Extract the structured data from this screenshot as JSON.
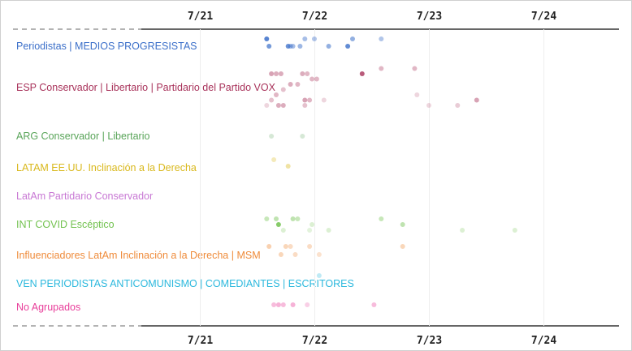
{
  "chart_data": {
    "type": "scatter",
    "title": "",
    "xlabel": "",
    "ylabel": "",
    "x_ticks": [
      "7/21",
      "7/22",
      "7/23",
      "7/24"
    ],
    "xlim": [
      "7/20 12:00",
      "7/25 12:00"
    ],
    "grid": true,
    "groups": [
      {
        "name": "Periodistas | MEDIOS PROGRESISTAS",
        "color": "#3b6fc9",
        "points": [
          {
            "x": "7/21 14:00",
            "o": 0.85,
            "band": 0
          },
          {
            "x": "7/21 14:30",
            "o": 0.7,
            "band": 1
          },
          {
            "x": "7/21 18:30",
            "o": 0.75,
            "band": 1
          },
          {
            "x": "7/21 19:00",
            "o": 0.5,
            "band": 1
          },
          {
            "x": "7/21 19:30",
            "o": 0.45,
            "band": 1
          },
          {
            "x": "7/21 21:00",
            "o": 0.5,
            "band": 1
          },
          {
            "x": "7/21 22:00",
            "o": 0.45,
            "band": 0
          },
          {
            "x": "7/22 00:00",
            "o": 0.4,
            "band": 0
          },
          {
            "x": "7/22 03:00",
            "o": 0.55,
            "band": 1
          },
          {
            "x": "7/22 07:00",
            "o": 0.8,
            "band": 1
          },
          {
            "x": "7/22 08:00",
            "o": 0.55,
            "band": 0
          },
          {
            "x": "7/22 14:00",
            "o": 0.4,
            "band": 0
          }
        ]
      },
      {
        "name": "ESP Conservador | Libertario | Partidario del Partido VOX",
        "color": "#a8325a",
        "points": [
          {
            "x": "7/21 15:00",
            "o": 0.45,
            "band": 2
          },
          {
            "x": "7/21 16:00",
            "o": 0.4,
            "band": 2
          },
          {
            "x": "7/21 17:00",
            "o": 0.4,
            "band": 2
          },
          {
            "x": "7/21 21:30",
            "o": 0.4,
            "band": 2
          },
          {
            "x": "7/21 22:30",
            "o": 0.35,
            "band": 2
          },
          {
            "x": "7/21 23:30",
            "o": 0.35,
            "band": 3
          },
          {
            "x": "7/22 00:30",
            "o": 0.35,
            "band": 3
          },
          {
            "x": "7/21 19:00",
            "o": 0.4,
            "band": 4
          },
          {
            "x": "7/21 20:30",
            "o": 0.35,
            "band": 4
          },
          {
            "x": "7/21 17:30",
            "o": 0.3,
            "band": 5
          },
          {
            "x": "7/21 16:00",
            "o": 0.35,
            "band": 6
          },
          {
            "x": "7/21 15:00",
            "o": 0.3,
            "band": 7
          },
          {
            "x": "7/21 22:00",
            "o": 0.45,
            "band": 7
          },
          {
            "x": "7/21 23:00",
            "o": 0.35,
            "band": 7
          },
          {
            "x": "7/21 16:30",
            "o": 0.4,
            "band": 8
          },
          {
            "x": "7/21 17:30",
            "o": 0.4,
            "band": 8
          },
          {
            "x": "7/21 22:00",
            "o": 0.3,
            "band": 8
          },
          {
            "x": "7/22 10:00",
            "o": 0.8,
            "band": 2
          },
          {
            "x": "7/22 14:00",
            "o": 0.35,
            "band": 1
          },
          {
            "x": "7/22 21:00",
            "o": 0.35,
            "band": 1
          },
          {
            "x": "7/22 21:30",
            "o": 0.2,
            "band": 6
          },
          {
            "x": "7/23 10:00",
            "o": 0.45,
            "band": 7
          },
          {
            "x": "7/23 06:00",
            "o": 0.25,
            "band": 8
          },
          {
            "x": "7/23 00:00",
            "o": 0.2,
            "band": 8
          },
          {
            "x": "7/22 02:00",
            "o": 0.2,
            "band": 7
          },
          {
            "x": "7/21 14:00",
            "o": 0.2,
            "band": 8
          }
        ]
      },
      {
        "name": "ARG Conservador | Libertario",
        "color": "#5aa55a",
        "points": [
          {
            "x": "7/21 15:00",
            "o": 0.25,
            "band": 0
          },
          {
            "x": "7/21 21:30",
            "o": 0.25,
            "band": 0
          }
        ]
      },
      {
        "name": "LATAM EE.UU. Inclinación a la Derecha",
        "color": "#d9b81c",
        "points": [
          {
            "x": "7/21 15:30",
            "o": 0.3,
            "band": 0
          },
          {
            "x": "7/21 18:30",
            "o": 0.4,
            "band": 1
          }
        ]
      },
      {
        "name": "LatAm Partidario Conservador",
        "color": "#c878d4",
        "points": []
      },
      {
        "name": "INT COVID Escéptico",
        "color": "#72c24f",
        "points": [
          {
            "x": "7/21 14:00",
            "o": 0.4,
            "band": 0
          },
          {
            "x": "7/21 16:00",
            "o": 0.45,
            "band": 0
          },
          {
            "x": "7/21 16:30",
            "o": 0.85,
            "band": 1
          },
          {
            "x": "7/21 19:30",
            "o": 0.45,
            "band": 0
          },
          {
            "x": "7/21 20:30",
            "o": 0.4,
            "band": 0
          },
          {
            "x": "7/21 17:30",
            "o": 0.25,
            "band": 2
          },
          {
            "x": "7/21 23:00",
            "o": 0.2,
            "band": 2
          },
          {
            "x": "7/22 03:00",
            "o": 0.25,
            "band": 2
          },
          {
            "x": "7/22 14:00",
            "o": 0.4,
            "band": 0
          },
          {
            "x": "7/22 18:30",
            "o": 0.45,
            "band": 1
          },
          {
            "x": "7/23 07:00",
            "o": 0.25,
            "band": 2
          },
          {
            "x": "7/23 18:00",
            "o": 0.25,
            "band": 2
          },
          {
            "x": "7/21 23:30",
            "o": 0.25,
            "band": 1
          }
        ]
      },
      {
        "name": "Influenciadores LatAm Inclinación a la Derecha | MSM",
        "color": "#ef8b3a",
        "points": [
          {
            "x": "7/21 14:30",
            "o": 0.4,
            "band": 0
          },
          {
            "x": "7/21 17:00",
            "o": 0.35,
            "band": 1
          },
          {
            "x": "7/21 18:00",
            "o": 0.35,
            "band": 0
          },
          {
            "x": "7/21 19:00",
            "o": 0.3,
            "band": 0
          },
          {
            "x": "7/21 20:00",
            "o": 0.3,
            "band": 1
          },
          {
            "x": "7/21 23:00",
            "o": 0.3,
            "band": 0
          },
          {
            "x": "7/22 01:00",
            "o": 0.25,
            "band": 1
          },
          {
            "x": "7/22 18:30",
            "o": 0.35,
            "band": 0
          }
        ]
      },
      {
        "name": "VEN PERIODISTAS ANTICOMUNISMO | COMEDIANTES | ESCRITORES",
        "color": "#2bb8dd",
        "points": [
          {
            "x": "7/22 01:00",
            "o": 0.3,
            "band": 0
          }
        ]
      },
      {
        "name": "No Agrupados",
        "color": "#e83e9a",
        "points": [
          {
            "x": "7/21 15:30",
            "o": 0.35,
            "band": 0
          },
          {
            "x": "7/21 16:30",
            "o": 0.4,
            "band": 0
          },
          {
            "x": "7/21 17:30",
            "o": 0.35,
            "band": 0
          },
          {
            "x": "7/21 19:30",
            "o": 0.4,
            "band": 0
          },
          {
            "x": "7/21 22:30",
            "o": 0.25,
            "band": 1
          },
          {
            "x": "7/22 12:30",
            "o": 0.35,
            "band": 0
          }
        ]
      }
    ]
  }
}
